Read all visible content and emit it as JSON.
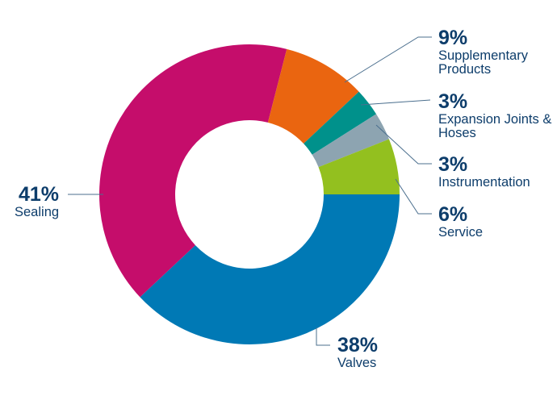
{
  "chart_data": {
    "type": "pie",
    "donut": true,
    "start_angle": "3 o'clock",
    "direction": "clockwise",
    "slices": [
      {
        "label": "Valves",
        "value": 38,
        "display": "38%",
        "color": "#0079b5"
      },
      {
        "label": "Sealing",
        "value": 41,
        "display": "41%",
        "color": "#c50d6b"
      },
      {
        "label": "Supplementary Products",
        "value": 9,
        "display": "9%",
        "color": "#ea6510"
      },
      {
        "label": "Expansion Joints & Hoses",
        "value": 3,
        "display": "3%",
        "color": "#00918b"
      },
      {
        "label": "Instrumentation",
        "value": 3,
        "display": "3%",
        "color": "#8da4b1"
      },
      {
        "label": "Service",
        "value": 6,
        "display": "6%",
        "color": "#93c01f"
      }
    ],
    "label_color": "#0d3d6b",
    "leader_color": "#4b6f8e"
  }
}
